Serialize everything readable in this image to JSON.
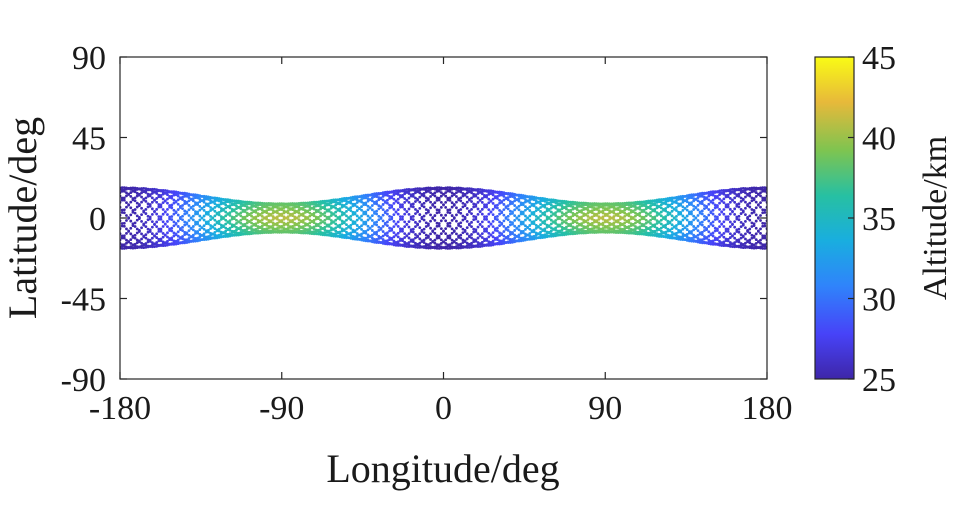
{
  "chart_data": {
    "type": "scatter",
    "title": "",
    "xlabel": "Longitude/deg",
    "ylabel": "Latitude/deg",
    "xlim": [
      -180,
      180
    ],
    "ylim": [
      -90,
      90
    ],
    "xticks": [
      -180,
      -90,
      0,
      90,
      180
    ],
    "yticks": [
      -90,
      -45,
      0,
      45,
      90
    ],
    "xtick_labels": [
      "-180",
      "-90",
      "0",
      "90",
      "180"
    ],
    "ytick_labels": [
      "-90",
      "-45",
      "0",
      "45",
      "90"
    ],
    "grid": false,
    "colorbar": {
      "label": "Altitude/km",
      "range": [
        25,
        45
      ],
      "ticks": [
        25,
        30,
        35,
        40,
        45
      ],
      "tick_labels": [
        "25",
        "30",
        "35",
        "40",
        "45"
      ],
      "colormap": "parula",
      "colors": [
        "#3e26a8",
        "#4743f8",
        "#2f84fb",
        "#19aedf",
        "#27c0a2",
        "#7ec450",
        "#e7b93a",
        "#f9fb15"
      ]
    },
    "series": [
      {
        "description_of_pattern": "dense ground-track bands between latitude -17 and 17 deg; band narrows near longitude -100 and 100 deg where altitude peaks around 41 km; band widest near longitude -180, 0 and 180 where altitude is lowest around 25-27 km",
        "lat_amplitude_max": 17,
        "lat_amplitude_min": 8,
        "narrow_longitudes": [
          -100,
          100
        ],
        "wide_longitudes": [
          -180,
          0,
          180
        ],
        "altitude_min": 25,
        "altitude_max": 41,
        "track_count": 14
      }
    ]
  }
}
